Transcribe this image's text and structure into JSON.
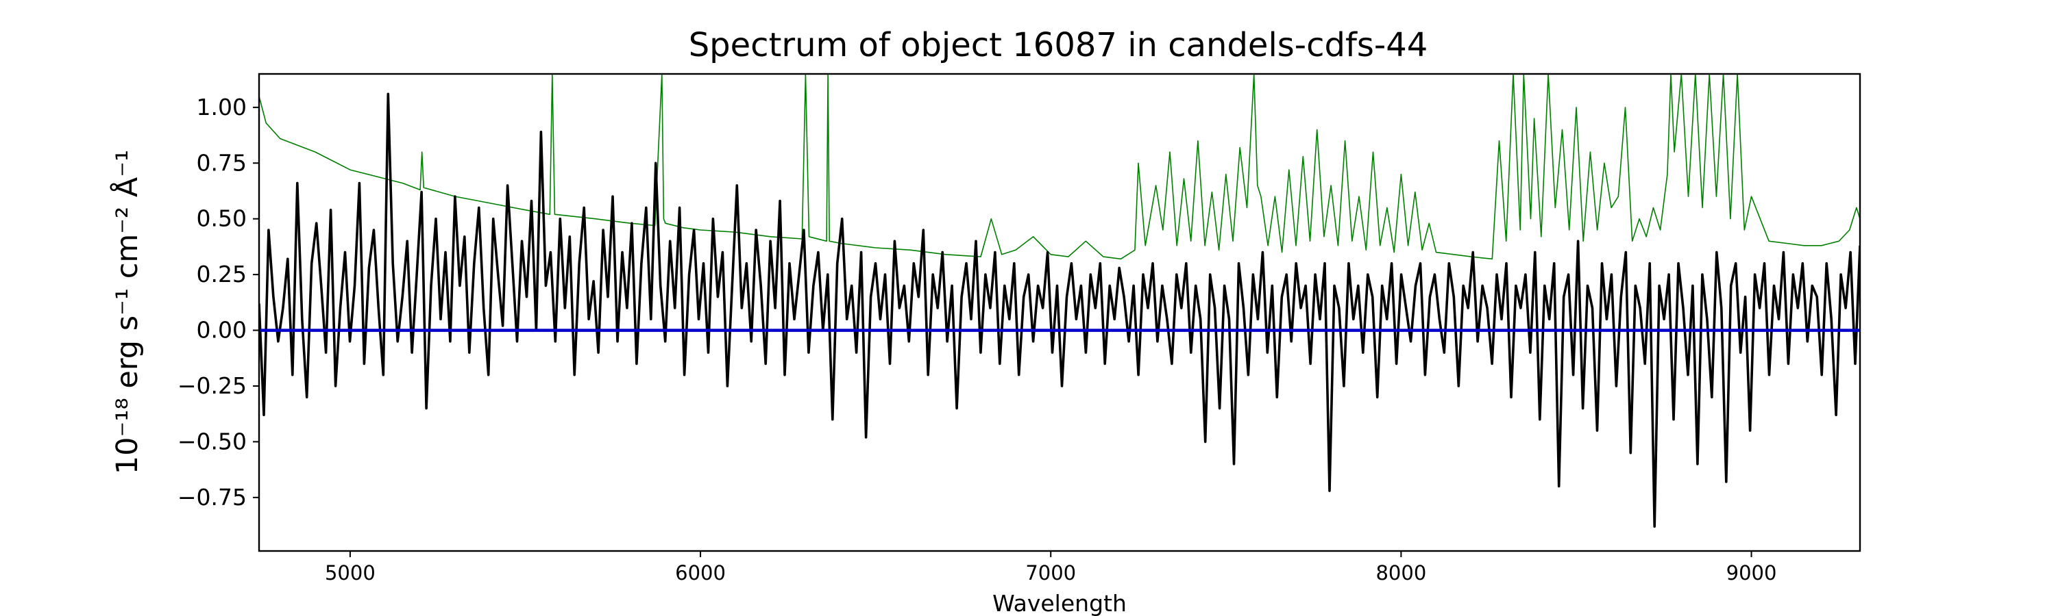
{
  "chart_data": {
    "type": "line",
    "title": "Spectrum of object 16087 in candels-cdfs-44",
    "xlabel": "Wavelength",
    "ylabel": "10⁻¹⁸ erg s⁻¹ cm⁻² Å⁻¹",
    "xlim": [
      4740,
      9310
    ],
    "ylim": [
      -0.99,
      1.15
    ],
    "xticks": [
      5000,
      6000,
      7000,
      8000,
      9000
    ],
    "yticks": [
      -0.75,
      -0.5,
      -0.25,
      0.0,
      0.25,
      0.5,
      0.75,
      1.0
    ],
    "xtick_labels": [
      "5000",
      "6000",
      "7000",
      "8000",
      "9000"
    ],
    "ytick_labels": [
      "−0.75",
      "−0.50",
      "−0.25",
      "0.00",
      "0.25",
      "0.50",
      "0.75",
      "1.00"
    ],
    "grid": false,
    "series": [
      {
        "role": "error / sky model",
        "color": "#008000",
        "x": [
          4740,
          4760,
          4800,
          4850,
          4900,
          4950,
          5000,
          5100,
          5150,
          5200,
          5205,
          5210,
          5300,
          5400,
          5500,
          5570,
          5577,
          5584,
          5700,
          5800,
          5870,
          5890,
          5895,
          5900,
          5950,
          6000,
          6100,
          6200,
          6290,
          6300,
          6310,
          6360,
          6364,
          6368,
          6400,
          6500,
          6600,
          6700,
          6800,
          6830,
          6860,
          6900,
          6950,
          7000,
          7050,
          7100,
          7150,
          7200,
          7240,
          7250,
          7270,
          7300,
          7320,
          7340,
          7360,
          7380,
          7400,
          7420,
          7440,
          7460,
          7480,
          7500,
          7520,
          7540,
          7560,
          7580,
          7590,
          7600,
          7620,
          7640,
          7660,
          7680,
          7700,
          7720,
          7740,
          7760,
          7780,
          7800,
          7820,
          7840,
          7860,
          7880,
          7900,
          7920,
          7940,
          7960,
          7980,
          8000,
          8020,
          8040,
          8060,
          8080,
          8100,
          8150,
          8200,
          8260,
          8280,
          8300,
          8320,
          8340,
          8350,
          8370,
          8380,
          8400,
          8420,
          8440,
          8460,
          8480,
          8500,
          8520,
          8540,
          8560,
          8580,
          8600,
          8620,
          8640,
          8660,
          8680,
          8700,
          8720,
          8740,
          8760,
          8770,
          8780,
          8800,
          8820,
          8840,
          8860,
          8880,
          8900,
          8920,
          8940,
          8960,
          8980,
          9000,
          9050,
          9100,
          9150,
          9200,
          9250,
          9280,
          9300,
          9310
        ],
        "y": [
          1.05,
          0.93,
          0.86,
          0.83,
          0.8,
          0.76,
          0.72,
          0.68,
          0.66,
          0.63,
          0.8,
          0.64,
          0.6,
          0.57,
          0.54,
          0.52,
          1.15,
          0.52,
          0.5,
          0.48,
          0.47,
          1.15,
          0.5,
          0.48,
          0.46,
          0.45,
          0.44,
          0.42,
          0.41,
          1.15,
          0.42,
          0.4,
          1.15,
          0.4,
          0.39,
          0.37,
          0.36,
          0.34,
          0.33,
          0.5,
          0.34,
          0.36,
          0.42,
          0.34,
          0.33,
          0.4,
          0.33,
          0.32,
          0.36,
          0.75,
          0.38,
          0.65,
          0.45,
          0.8,
          0.38,
          0.68,
          0.4,
          0.85,
          0.38,
          0.62,
          0.36,
          0.7,
          0.4,
          0.82,
          0.55,
          1.15,
          0.65,
          0.6,
          0.38,
          0.6,
          0.35,
          0.72,
          0.38,
          0.78,
          0.4,
          0.9,
          0.42,
          0.65,
          0.38,
          0.85,
          0.4,
          0.6,
          0.36,
          0.8,
          0.38,
          0.55,
          0.35,
          0.7,
          0.38,
          0.62,
          0.36,
          0.48,
          0.35,
          0.34,
          0.33,
          0.32,
          0.85,
          0.4,
          1.15,
          0.45,
          1.15,
          0.5,
          0.95,
          0.42,
          1.15,
          0.55,
          0.9,
          0.45,
          1.0,
          0.4,
          0.8,
          0.45,
          0.75,
          0.55,
          0.6,
          1.0,
          0.4,
          0.5,
          0.42,
          0.55,
          0.45,
          0.7,
          1.15,
          0.8,
          1.15,
          0.6,
          1.15,
          0.55,
          1.15,
          0.6,
          1.15,
          0.5,
          1.15,
          0.45,
          0.6,
          0.4,
          0.39,
          0.38,
          0.38,
          0.4,
          0.45,
          0.55,
          0.5
        ]
      },
      {
        "role": "flux",
        "color": "#000000",
        "x_start": 4740,
        "x_end": 9310,
        "y": [
          0.12,
          -0.38,
          0.45,
          0.15,
          -0.05,
          0.1,
          0.32,
          -0.2,
          0.66,
          0.05,
          -0.3,
          0.3,
          0.48,
          0.2,
          -0.1,
          0.54,
          -0.25,
          0.1,
          0.35,
          -0.05,
          0.2,
          0.66,
          -0.15,
          0.28,
          0.45,
          0.1,
          -0.2,
          1.06,
          0.3,
          -0.05,
          0.15,
          0.4,
          -0.1,
          0.25,
          0.62,
          -0.35,
          0.2,
          0.5,
          0.05,
          0.35,
          -0.05,
          0.6,
          0.2,
          0.42,
          -0.1,
          0.3,
          0.55,
          0.1,
          -0.2,
          0.5,
          0.25,
          0.02,
          0.65,
          0.3,
          -0.05,
          0.4,
          0.15,
          0.58,
          0.0,
          0.89,
          0.2,
          0.35,
          -0.05,
          0.5,
          0.1,
          0.42,
          -0.2,
          0.3,
          0.55,
          0.05,
          0.22,
          -0.1,
          0.45,
          0.15,
          0.6,
          -0.05,
          0.35,
          0.1,
          0.48,
          -0.15,
          0.3,
          0.55,
          0.05,
          0.75,
          0.2,
          -0.05,
          0.4,
          0.1,
          0.55,
          -0.2,
          0.25,
          0.45,
          0.05,
          0.3,
          -0.1,
          0.5,
          0.15,
          0.35,
          -0.25,
          0.2,
          0.65,
          0.1,
          0.3,
          -0.05,
          0.45,
          0.2,
          -0.15,
          0.4,
          0.1,
          0.58,
          -0.2,
          0.3,
          0.05,
          0.25,
          0.45,
          -0.1,
          0.2,
          0.35,
          0.0,
          0.25,
          -0.4,
          0.3,
          0.5,
          0.05,
          0.2,
          -0.1,
          0.35,
          -0.48,
          0.15,
          0.3,
          0.05,
          0.25,
          -0.15,
          0.4,
          0.1,
          0.2,
          -0.05,
          0.3,
          0.15,
          0.45,
          -0.2,
          0.25,
          0.1,
          0.35,
          -0.05,
          0.2,
          -0.35,
          0.15,
          0.3,
          0.05,
          0.4,
          -0.1,
          0.25,
          0.1,
          0.35,
          -0.15,
          0.2,
          0.05,
          0.3,
          -0.2,
          0.15,
          0.25,
          -0.05,
          0.2,
          0.1,
          0.35,
          -0.1,
          0.2,
          -0.25,
          0.15,
          0.3,
          0.05,
          0.2,
          -0.1,
          0.25,
          0.1,
          0.3,
          -0.15,
          0.2,
          0.05,
          0.28,
          0.15,
          -0.05,
          0.2,
          -0.2,
          0.25,
          0.1,
          0.3,
          -0.05,
          0.2,
          0.05,
          -0.15,
          0.25,
          0.1,
          0.3,
          -0.1,
          0.2,
          0.05,
          -0.5,
          0.25,
          0.1,
          -0.35,
          0.2,
          0.05,
          -0.6,
          0.3,
          0.1,
          -0.2,
          0.25,
          0.05,
          0.35,
          -0.1,
          0.2,
          -0.3,
          0.15,
          0.25,
          -0.05,
          0.3,
          0.1,
          0.2,
          -0.15,
          0.25,
          0.05,
          0.3,
          -0.72,
          0.2,
          0.1,
          -0.25,
          0.3,
          0.05,
          0.2,
          -0.1,
          0.25,
          0.15,
          -0.3,
          0.2,
          0.05,
          0.3,
          -0.15,
          0.25,
          0.1,
          -0.05,
          0.2,
          0.3,
          -0.2,
          0.15,
          0.25,
          0.05,
          -0.1,
          0.3,
          0.15,
          -0.25,
          0.2,
          0.1,
          0.35,
          -0.05,
          0.2,
          0.1,
          -0.15,
          0.25,
          0.05,
          0.3,
          -0.3,
          0.2,
          0.1,
          0.25,
          -0.1,
          0.35,
          -0.4,
          0.2,
          0.05,
          0.3,
          -0.7,
          0.15,
          0.25,
          -0.2,
          0.4,
          -0.35,
          0.2,
          0.1,
          -0.45,
          0.3,
          0.05,
          0.25,
          -0.25,
          0.15,
          0.35,
          -0.55,
          0.2,
          0.1,
          -0.15,
          0.3,
          -0.88,
          0.2,
          0.05,
          0.25,
          -0.4,
          0.3,
          0.1,
          -0.2,
          0.2,
          -0.6,
          0.25,
          0.05,
          -0.3,
          0.35,
          0.1,
          -0.68,
          0.2,
          0.3,
          -0.1,
          0.15,
          -0.45,
          0.25,
          0.1,
          0.3,
          -0.2,
          0.2,
          0.05,
          0.35,
          -0.15,
          0.25,
          0.1,
          0.3,
          -0.05,
          0.2,
          0.15,
          -0.2,
          0.3,
          0.05,
          -0.38,
          0.25,
          0.1,
          0.35,
          -0.15,
          0.38
        ]
      },
      {
        "role": "zero level",
        "color": "#0000cc",
        "x": [
          4740,
          9310
        ],
        "y": [
          0.0,
          0.0
        ]
      }
    ]
  }
}
